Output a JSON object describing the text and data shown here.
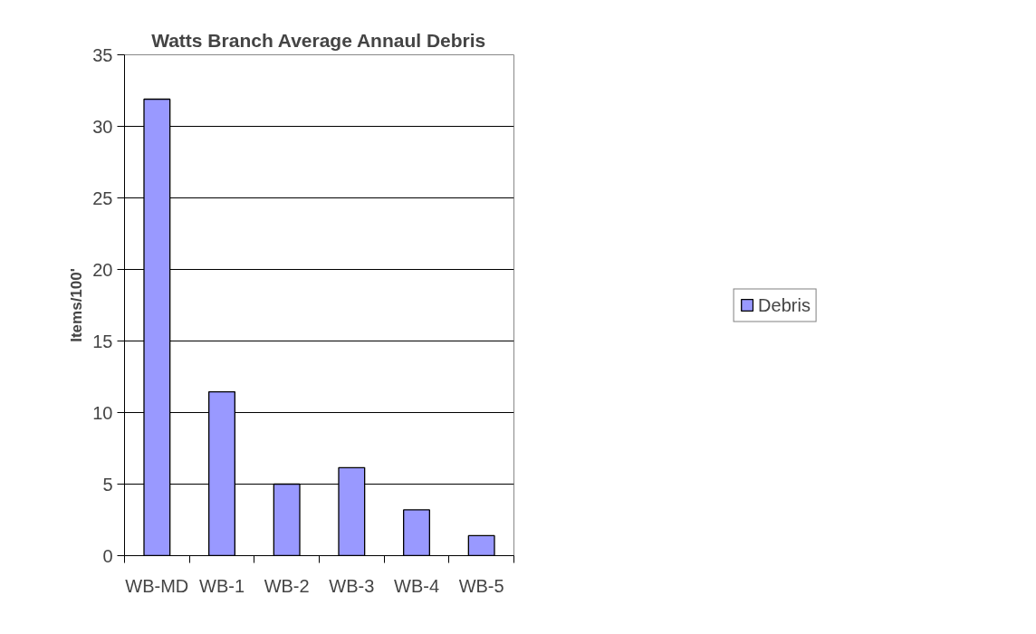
{
  "chart_data": {
    "type": "bar",
    "title": "Watts Branch Average Annaul Debris",
    "ylabel": "Items/100'",
    "categories": [
      "WB-MD",
      "WB-1",
      "WB-2",
      "WB-3",
      "WB-4",
      "WB-5"
    ],
    "series": [
      {
        "name": "Debris",
        "color": "#9999ff",
        "values": [
          31.9,
          11.45,
          5.0,
          6.15,
          3.2,
          1.4
        ]
      }
    ],
    "ylim": [
      0,
      35
    ],
    "yticks": [
      0,
      5,
      10,
      15,
      20,
      25,
      30,
      35
    ],
    "grid": "y",
    "legend": "right"
  }
}
